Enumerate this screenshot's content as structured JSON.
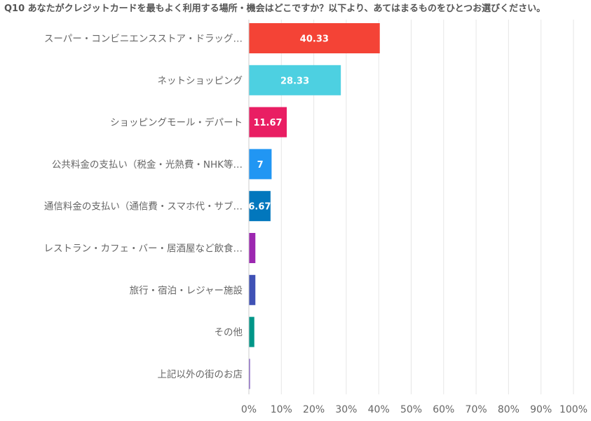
{
  "chart_data": {
    "type": "bar",
    "orientation": "horizontal",
    "title": "Q10 あなたがクレジットカードを最もよく利用する場所・機会はどこですか？以下より、あてはまるものをひとつお選びください。",
    "categories": [
      "スーパー・コンビニエンスストア・ドラッグ…",
      "ネットショッピング",
      "ショッピングモール・デパート",
      "公共料金の支払い（税金・光熱費・NHK等…",
      "通信料金の支払い（通信費・スマホ代・サブ…",
      "レストラン・カフェ・バー・居酒屋など飲食…",
      "旅行・宿泊・レジャー施設",
      "その他",
      "上記以外の街のお店"
    ],
    "values": [
      40.33,
      28.33,
      11.67,
      7,
      6.67,
      2,
      2,
      1.67,
      0.33
    ],
    "data_labels": [
      "40.33",
      "28.33",
      "11.67",
      "7",
      "6.67",
      "",
      "",
      "",
      ""
    ],
    "colors": [
      "#f44336",
      "#4dd0e1",
      "#e91e63",
      "#2196f3",
      "#0277bd",
      "#9c27b0",
      "#3f51b5",
      "#009688",
      "#673ab7"
    ],
    "xlim": [
      0,
      100
    ],
    "x_ticks": [
      "0%",
      "10%",
      "20%",
      "30%",
      "40%",
      "50%",
      "60%",
      "70%",
      "80%",
      "90%",
      "100%"
    ],
    "grid": true
  }
}
